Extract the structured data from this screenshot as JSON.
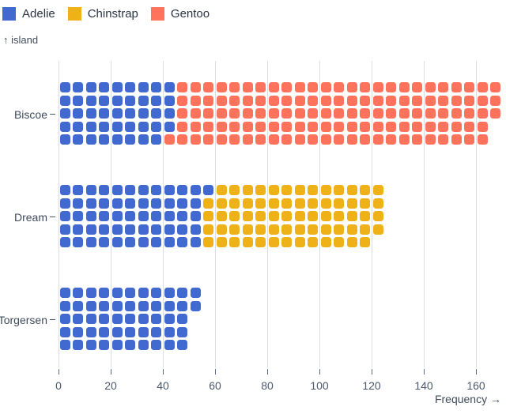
{
  "legend": {
    "items": [
      {
        "label": "Adelie",
        "color": "#4269d0"
      },
      {
        "label": "Chinstrap",
        "color": "#efb118"
      },
      {
        "label": "Gentoo",
        "color": "#ff725c"
      }
    ]
  },
  "axes": {
    "y_label": "↑ island",
    "x_label": "Frequency →"
  },
  "chart_data": {
    "type": "waffle",
    "title": "",
    "orientation": "horizontal",
    "unit": 1,
    "rows_per_column": 5,
    "fill_order": "column-major-top-to-bottom",
    "categories": [
      "Biscoe",
      "Dream",
      "Torgersen"
    ],
    "series": [
      {
        "name": "Adelie",
        "color": "#4269d0",
        "values": [
          44,
          56,
          52
        ]
      },
      {
        "name": "Chinstrap",
        "color": "#efb118",
        "values": [
          0,
          68,
          0
        ]
      },
      {
        "name": "Gentoo",
        "color": "#ff725c",
        "values": [
          124,
          0,
          0
        ]
      }
    ],
    "totals": [
      168,
      124,
      52
    ],
    "xlabel": "Frequency →",
    "ylabel": "island",
    "x_ticks": [
      0,
      20,
      40,
      60,
      80,
      100,
      120,
      140,
      160
    ],
    "xlim": [
      0,
      170
    ],
    "grid": true,
    "legend_position": "top-left"
  },
  "colors": {
    "background": "#ffffff",
    "gridline": "#dadde1",
    "tick_mark": "#5f6e80",
    "tick_text": "#4a5869",
    "label_text": "#3e4b5c",
    "legend_text": "#2a3442"
  }
}
